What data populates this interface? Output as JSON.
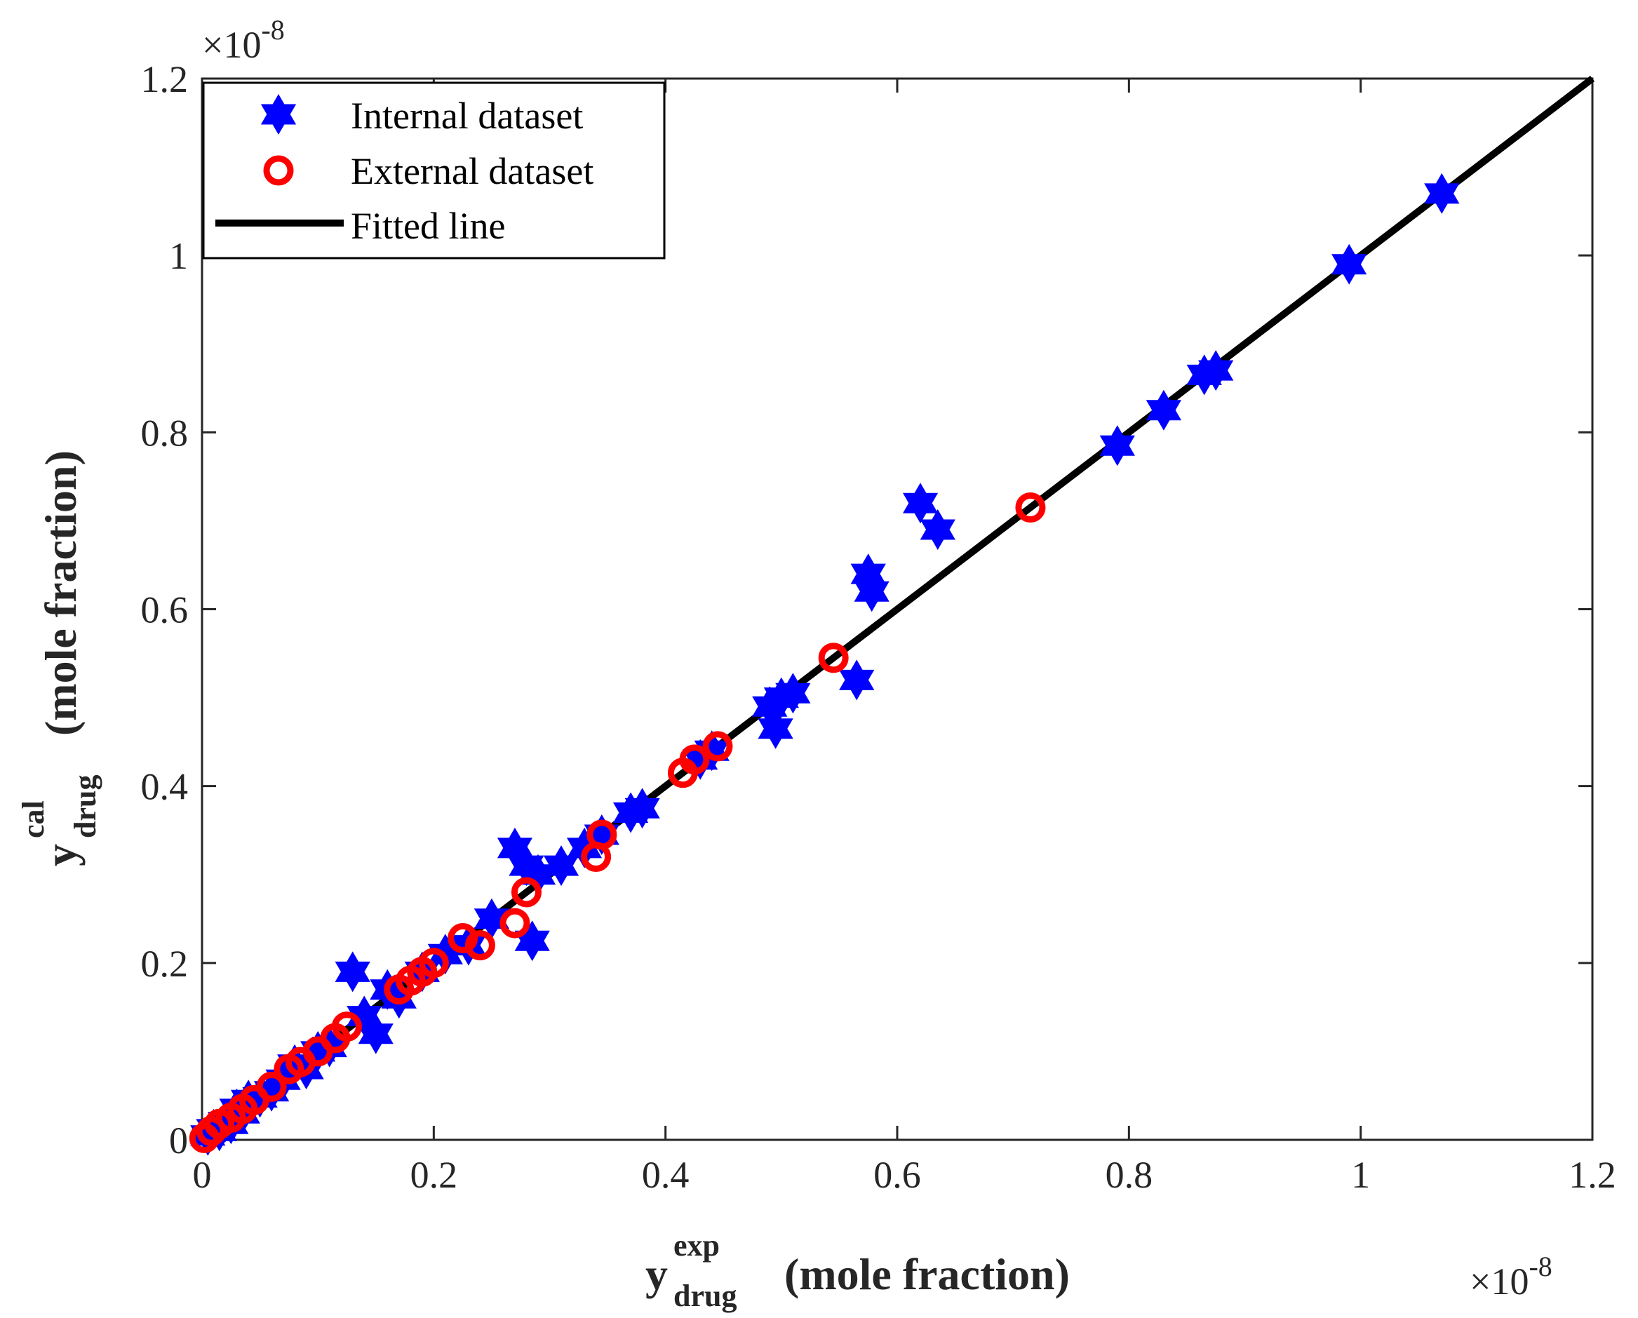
{
  "chart_data": {
    "type": "scatter",
    "xlabel": {
      "main": "y",
      "superscript": "exp",
      "subscript": "drug",
      "suffix": "(mole fraction)"
    },
    "ylabel": {
      "main": "y",
      "superscript": "cal",
      "subscript": "drug",
      "suffix": "(mole fraction)"
    },
    "x_exponent": {
      "base": "×10",
      "power": "-8"
    },
    "y_exponent": {
      "base": "×10",
      "power": "-8"
    },
    "xlim": [
      0,
      1.2
    ],
    "ylim": [
      0,
      1.2
    ],
    "xticks": [
      0,
      0.2,
      0.4,
      0.6,
      0.8,
      1,
      1.2
    ],
    "yticks": [
      0,
      0.2,
      0.4,
      0.6,
      0.8,
      1,
      1.2
    ],
    "xtick_labels": [
      "0",
      "0.2",
      "0.4",
      "0.6",
      "0.8",
      "1",
      "1.2"
    ],
    "ytick_labels": [
      "0",
      "0.2",
      "0.4",
      "0.6",
      "0.8",
      "1",
      "1.2"
    ],
    "legend_position": "top-left",
    "series": [
      {
        "name": "Internal dataset",
        "marker": "hexagram",
        "color": "#0000ff",
        "points": [
          [
            0.005,
            0.005
          ],
          [
            0.01,
            0.012
          ],
          [
            0.015,
            0.01
          ],
          [
            0.02,
            0.02
          ],
          [
            0.025,
            0.018
          ],
          [
            0.03,
            0.035
          ],
          [
            0.035,
            0.03
          ],
          [
            0.04,
            0.045
          ],
          [
            0.05,
            0.048
          ],
          [
            0.06,
            0.055
          ],
          [
            0.07,
            0.068
          ],
          [
            0.08,
            0.085
          ],
          [
            0.09,
            0.08
          ],
          [
            0.1,
            0.1
          ],
          [
            0.11,
            0.105
          ],
          [
            0.13,
            0.19
          ],
          [
            0.14,
            0.14
          ],
          [
            0.15,
            0.12
          ],
          [
            0.16,
            0.17
          ],
          [
            0.17,
            0.16
          ],
          [
            0.19,
            0.19
          ],
          [
            0.21,
            0.21
          ],
          [
            0.23,
            0.22
          ],
          [
            0.25,
            0.25
          ],
          [
            0.27,
            0.33
          ],
          [
            0.28,
            0.31
          ],
          [
            0.285,
            0.225
          ],
          [
            0.29,
            0.3
          ],
          [
            0.31,
            0.31
          ],
          [
            0.33,
            0.33
          ],
          [
            0.345,
            0.345
          ],
          [
            0.37,
            0.37
          ],
          [
            0.38,
            0.375
          ],
          [
            0.43,
            0.43
          ],
          [
            0.44,
            0.44
          ],
          [
            0.49,
            0.49
          ],
          [
            0.495,
            0.465
          ],
          [
            0.5,
            0.5
          ],
          [
            0.51,
            0.505
          ],
          [
            0.565,
            0.52
          ],
          [
            0.575,
            0.64
          ],
          [
            0.578,
            0.62
          ],
          [
            0.62,
            0.72
          ],
          [
            0.635,
            0.69
          ],
          [
            0.79,
            0.785
          ],
          [
            0.83,
            0.825
          ],
          [
            0.865,
            0.865
          ],
          [
            0.875,
            0.87
          ],
          [
            0.99,
            0.99
          ],
          [
            1.07,
            1.07
          ]
        ]
      },
      {
        "name": "External dataset",
        "marker": "circle",
        "color": "#ff0000",
        "points": [
          [
            0.002,
            0.002
          ],
          [
            0.008,
            0.01
          ],
          [
            0.015,
            0.018
          ],
          [
            0.025,
            0.025
          ],
          [
            0.035,
            0.035
          ],
          [
            0.045,
            0.045
          ],
          [
            0.06,
            0.06
          ],
          [
            0.075,
            0.08
          ],
          [
            0.085,
            0.088
          ],
          [
            0.1,
            0.1
          ],
          [
            0.115,
            0.115
          ],
          [
            0.125,
            0.128
          ],
          [
            0.17,
            0.17
          ],
          [
            0.18,
            0.18
          ],
          [
            0.19,
            0.19
          ],
          [
            0.2,
            0.2
          ],
          [
            0.225,
            0.228
          ],
          [
            0.24,
            0.22
          ],
          [
            0.27,
            0.245
          ],
          [
            0.28,
            0.28
          ],
          [
            0.34,
            0.32
          ],
          [
            0.345,
            0.345
          ],
          [
            0.415,
            0.415
          ],
          [
            0.425,
            0.43
          ],
          [
            0.445,
            0.445
          ],
          [
            0.545,
            0.545
          ],
          [
            0.715,
            0.715
          ]
        ]
      },
      {
        "name": "Fitted line",
        "marker": "line",
        "color": "#000000",
        "points": [
          [
            0,
            0
          ],
          [
            1.2,
            1.2
          ]
        ]
      }
    ]
  }
}
